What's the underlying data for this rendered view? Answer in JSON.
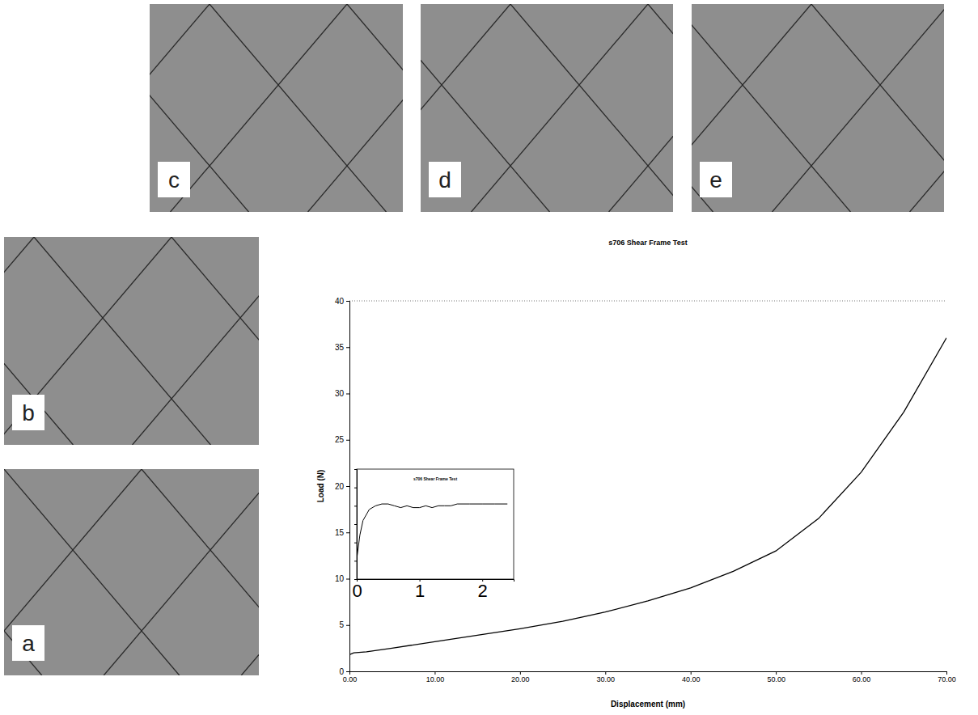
{
  "photos": [
    {
      "label": "a"
    },
    {
      "label": "b"
    },
    {
      "label": "c"
    },
    {
      "label": "d"
    },
    {
      "label": "e"
    }
  ],
  "chart_data": [
    {
      "type": "line",
      "title": "s706 Shear Frame Test",
      "x_label": "Displacement (mm)",
      "y_label": "Load (N)",
      "color": "#000000",
      "x": [
        0,
        0.5,
        2,
        5,
        10,
        15,
        20,
        25,
        30,
        35,
        40,
        45,
        50,
        55,
        60,
        65,
        70
      ],
      "values": [
        1.8,
        2.0,
        2.1,
        2.5,
        3.2,
        3.9,
        4.6,
        5.4,
        6.4,
        7.6,
        9.0,
        10.8,
        13.0,
        16.5,
        21.5,
        28.0,
        36.0
      ],
      "xlim": [
        0,
        70
      ],
      "xticks": [
        {
          "value": 0,
          "label": "0.00"
        },
        {
          "value": 10,
          "label": "10.00"
        },
        {
          "value": 20,
          "label": "20.00"
        },
        {
          "value": 30,
          "label": "30.00"
        },
        {
          "value": 40,
          "label": "40.00"
        },
        {
          "value": 50,
          "label": "50.00"
        },
        {
          "value": 60,
          "label": "60.00"
        },
        {
          "value": 70,
          "label": "70.00"
        }
      ],
      "ylim": [
        0,
        40
      ],
      "yticks": [
        0,
        5,
        10,
        15,
        20,
        25,
        30,
        35,
        40
      ],
      "grid": false
    },
    {
      "type": "line",
      "title": "s706 Shear Frame Test",
      "color": "#000000",
      "x": [
        0,
        0.05,
        0.1,
        0.2,
        0.3,
        0.4,
        0.5,
        0.6,
        0.7,
        0.8,
        0.9,
        1.0,
        1.1,
        1.2,
        1.3,
        1.4,
        1.5,
        1.6,
        1.8,
        2.0,
        2.2,
        2.4
      ],
      "values": [
        0.55,
        1.2,
        1.6,
        1.9,
        2.0,
        2.05,
        2.05,
        2.0,
        1.95,
        2.0,
        1.95,
        1.95,
        2.0,
        1.95,
        2.0,
        2.0,
        2.0,
        2.05,
        2.05,
        2.05,
        2.05,
        2.05
      ],
      "xlim": [
        0,
        2.5
      ],
      "xticks": [
        0,
        1,
        2
      ],
      "ylim": [
        0,
        3
      ],
      "yticks": [
        0,
        0.5,
        1,
        1.5,
        2,
        2.5,
        3
      ],
      "tick_labels": "x",
      "grid": false
    }
  ]
}
